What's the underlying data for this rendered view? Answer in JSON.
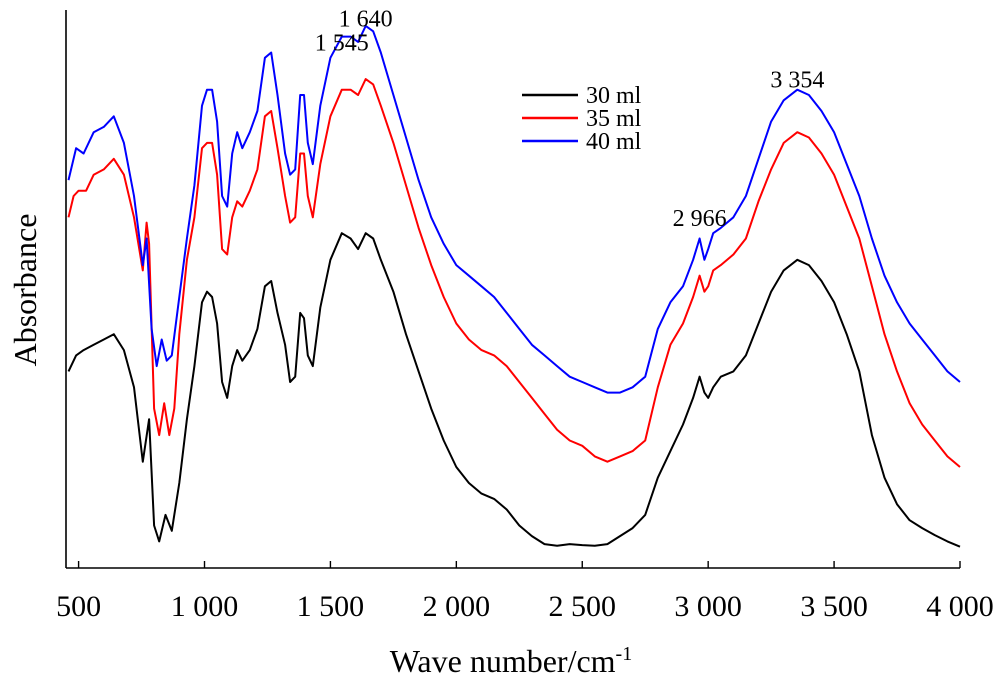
{
  "chart_data": {
    "type": "line",
    "xlabel": "Wave number/cm",
    "xlabel_sup": "-1",
    "ylabel": "Absorbance",
    "xlim": [
      450,
      4000
    ],
    "ylim": [
      0,
      1.05
    ],
    "x_ticks": [
      500,
      1000,
      1500,
      2000,
      2500,
      3000,
      3500,
      4000
    ],
    "x_tick_labels": [
      "500",
      "1 000",
      "1 500",
      "2 000",
      "2 500",
      "3 000",
      "3 500",
      "4 000"
    ],
    "y_ticks_shown": false,
    "legend_position": "top-center",
    "annotations": [
      {
        "text": "1 545",
        "x": 1545,
        "y": 0.955
      },
      {
        "text": "1 640",
        "x": 1640,
        "y": 1.0
      },
      {
        "text": "2 966",
        "x": 2966,
        "y": 0.625
      },
      {
        "text": "3 354",
        "x": 3354,
        "y": 0.885
      }
    ],
    "series": [
      {
        "name": "30 ml",
        "color": "#000000",
        "points": [
          [
            460,
            0.37
          ],
          [
            490,
            0.4
          ],
          [
            520,
            0.41
          ],
          [
            560,
            0.42
          ],
          [
            600,
            0.43
          ],
          [
            640,
            0.44
          ],
          [
            680,
            0.41
          ],
          [
            720,
            0.34
          ],
          [
            755,
            0.2
          ],
          [
            780,
            0.28
          ],
          [
            800,
            0.08
          ],
          [
            820,
            0.05
          ],
          [
            845,
            0.1
          ],
          [
            870,
            0.07
          ],
          [
            900,
            0.16
          ],
          [
            930,
            0.28
          ],
          [
            960,
            0.38
          ],
          [
            990,
            0.5
          ],
          [
            1010,
            0.52
          ],
          [
            1030,
            0.51
          ],
          [
            1050,
            0.46
          ],
          [
            1070,
            0.35
          ],
          [
            1090,
            0.32
          ],
          [
            1110,
            0.38
          ],
          [
            1130,
            0.41
          ],
          [
            1150,
            0.39
          ],
          [
            1180,
            0.41
          ],
          [
            1210,
            0.45
          ],
          [
            1240,
            0.53
          ],
          [
            1265,
            0.54
          ],
          [
            1290,
            0.48
          ],
          [
            1320,
            0.42
          ],
          [
            1340,
            0.35
          ],
          [
            1360,
            0.36
          ],
          [
            1380,
            0.48
          ],
          [
            1395,
            0.47
          ],
          [
            1410,
            0.4
          ],
          [
            1430,
            0.38
          ],
          [
            1460,
            0.49
          ],
          [
            1500,
            0.58
          ],
          [
            1545,
            0.63
          ],
          [
            1580,
            0.62
          ],
          [
            1610,
            0.6
          ],
          [
            1640,
            0.63
          ],
          [
            1670,
            0.62
          ],
          [
            1700,
            0.58
          ],
          [
            1750,
            0.52
          ],
          [
            1800,
            0.44
          ],
          [
            1850,
            0.37
          ],
          [
            1900,
            0.3
          ],
          [
            1950,
            0.24
          ],
          [
            2000,
            0.19
          ],
          [
            2050,
            0.16
          ],
          [
            2100,
            0.14
          ],
          [
            2150,
            0.13
          ],
          [
            2200,
            0.11
          ],
          [
            2250,
            0.08
          ],
          [
            2300,
            0.06
          ],
          [
            2350,
            0.045
          ],
          [
            2400,
            0.042
          ],
          [
            2450,
            0.045
          ],
          [
            2500,
            0.043
          ],
          [
            2550,
            0.042
          ],
          [
            2600,
            0.045
          ],
          [
            2650,
            0.06
          ],
          [
            2700,
            0.075
          ],
          [
            2750,
            0.1
          ],
          [
            2800,
            0.17
          ],
          [
            2850,
            0.22
          ],
          [
            2900,
            0.27
          ],
          [
            2940,
            0.32
          ],
          [
            2966,
            0.36
          ],
          [
            2985,
            0.33
          ],
          [
            3000,
            0.32
          ],
          [
            3020,
            0.34
          ],
          [
            3050,
            0.36
          ],
          [
            3100,
            0.37
          ],
          [
            3150,
            0.4
          ],
          [
            3200,
            0.46
          ],
          [
            3250,
            0.52
          ],
          [
            3300,
            0.56
          ],
          [
            3354,
            0.58
          ],
          [
            3400,
            0.57
          ],
          [
            3450,
            0.54
          ],
          [
            3500,
            0.5
          ],
          [
            3550,
            0.44
          ],
          [
            3600,
            0.37
          ],
          [
            3650,
            0.25
          ],
          [
            3700,
            0.17
          ],
          [
            3750,
            0.12
          ],
          [
            3800,
            0.09
          ],
          [
            3850,
            0.075
          ],
          [
            3900,
            0.062
          ],
          [
            3950,
            0.05
          ],
          [
            4000,
            0.04
          ]
        ]
      },
      {
        "name": "35 ml",
        "color": "#ff0000",
        "points": [
          [
            460,
            0.66
          ],
          [
            480,
            0.7
          ],
          [
            500,
            0.71
          ],
          [
            530,
            0.71
          ],
          [
            560,
            0.74
          ],
          [
            600,
            0.75
          ],
          [
            640,
            0.77
          ],
          [
            680,
            0.74
          ],
          [
            720,
            0.66
          ],
          [
            755,
            0.56
          ],
          [
            770,
            0.65
          ],
          [
            780,
            0.61
          ],
          [
            800,
            0.3
          ],
          [
            820,
            0.25
          ],
          [
            840,
            0.31
          ],
          [
            860,
            0.25
          ],
          [
            880,
            0.3
          ],
          [
            900,
            0.44
          ],
          [
            930,
            0.58
          ],
          [
            960,
            0.66
          ],
          [
            990,
            0.79
          ],
          [
            1010,
            0.8
          ],
          [
            1030,
            0.8
          ],
          [
            1050,
            0.74
          ],
          [
            1070,
            0.6
          ],
          [
            1090,
            0.59
          ],
          [
            1110,
            0.66
          ],
          [
            1130,
            0.69
          ],
          [
            1150,
            0.68
          ],
          [
            1180,
            0.71
          ],
          [
            1210,
            0.75
          ],
          [
            1240,
            0.85
          ],
          [
            1265,
            0.86
          ],
          [
            1290,
            0.79
          ],
          [
            1320,
            0.7
          ],
          [
            1340,
            0.65
          ],
          [
            1360,
            0.66
          ],
          [
            1380,
            0.78
          ],
          [
            1395,
            0.78
          ],
          [
            1410,
            0.7
          ],
          [
            1430,
            0.66
          ],
          [
            1460,
            0.76
          ],
          [
            1500,
            0.85
          ],
          [
            1545,
            0.9
          ],
          [
            1580,
            0.9
          ],
          [
            1610,
            0.89
          ],
          [
            1640,
            0.92
          ],
          [
            1670,
            0.91
          ],
          [
            1700,
            0.87
          ],
          [
            1750,
            0.8
          ],
          [
            1800,
            0.72
          ],
          [
            1850,
            0.64
          ],
          [
            1900,
            0.57
          ],
          [
            1950,
            0.51
          ],
          [
            2000,
            0.46
          ],
          [
            2050,
            0.43
          ],
          [
            2100,
            0.41
          ],
          [
            2150,
            0.4
          ],
          [
            2200,
            0.38
          ],
          [
            2250,
            0.35
          ],
          [
            2300,
            0.32
          ],
          [
            2350,
            0.29
          ],
          [
            2400,
            0.26
          ],
          [
            2450,
            0.24
          ],
          [
            2500,
            0.23
          ],
          [
            2550,
            0.21
          ],
          [
            2600,
            0.2
          ],
          [
            2650,
            0.21
          ],
          [
            2700,
            0.22
          ],
          [
            2750,
            0.24
          ],
          [
            2800,
            0.34
          ],
          [
            2850,
            0.42
          ],
          [
            2900,
            0.46
          ],
          [
            2940,
            0.51
          ],
          [
            2966,
            0.55
          ],
          [
            2985,
            0.52
          ],
          [
            3000,
            0.53
          ],
          [
            3020,
            0.56
          ],
          [
            3050,
            0.57
          ],
          [
            3100,
            0.59
          ],
          [
            3150,
            0.62
          ],
          [
            3200,
            0.69
          ],
          [
            3250,
            0.75
          ],
          [
            3300,
            0.8
          ],
          [
            3354,
            0.82
          ],
          [
            3400,
            0.81
          ],
          [
            3450,
            0.78
          ],
          [
            3500,
            0.74
          ],
          [
            3550,
            0.68
          ],
          [
            3600,
            0.62
          ],
          [
            3650,
            0.53
          ],
          [
            3700,
            0.44
          ],
          [
            3750,
            0.37
          ],
          [
            3800,
            0.31
          ],
          [
            3850,
            0.27
          ],
          [
            3900,
            0.24
          ],
          [
            3950,
            0.21
          ],
          [
            4000,
            0.19
          ]
        ]
      },
      {
        "name": "40 ml",
        "color": "#0000ff",
        "points": [
          [
            460,
            0.73
          ],
          [
            490,
            0.79
          ],
          [
            520,
            0.78
          ],
          [
            560,
            0.82
          ],
          [
            600,
            0.83
          ],
          [
            640,
            0.85
          ],
          [
            680,
            0.8
          ],
          [
            720,
            0.7
          ],
          [
            755,
            0.57
          ],
          [
            770,
            0.62
          ],
          [
            790,
            0.45
          ],
          [
            810,
            0.38
          ],
          [
            830,
            0.43
          ],
          [
            850,
            0.39
          ],
          [
            870,
            0.4
          ],
          [
            900,
            0.51
          ],
          [
            930,
            0.62
          ],
          [
            960,
            0.72
          ],
          [
            990,
            0.87
          ],
          [
            1010,
            0.9
          ],
          [
            1030,
            0.9
          ],
          [
            1050,
            0.84
          ],
          [
            1070,
            0.7
          ],
          [
            1090,
            0.68
          ],
          [
            1110,
            0.78
          ],
          [
            1130,
            0.82
          ],
          [
            1150,
            0.79
          ],
          [
            1180,
            0.82
          ],
          [
            1210,
            0.86
          ],
          [
            1240,
            0.96
          ],
          [
            1265,
            0.97
          ],
          [
            1290,
            0.89
          ],
          [
            1320,
            0.78
          ],
          [
            1340,
            0.74
          ],
          [
            1360,
            0.75
          ],
          [
            1380,
            0.89
          ],
          [
            1395,
            0.89
          ],
          [
            1410,
            0.8
          ],
          [
            1430,
            0.76
          ],
          [
            1460,
            0.87
          ],
          [
            1500,
            0.96
          ],
          [
            1545,
            1.0
          ],
          [
            1580,
            1.0
          ],
          [
            1610,
            0.99
          ],
          [
            1640,
            1.02
          ],
          [
            1670,
            1.01
          ],
          [
            1700,
            0.97
          ],
          [
            1750,
            0.89
          ],
          [
            1800,
            0.81
          ],
          [
            1850,
            0.73
          ],
          [
            1900,
            0.66
          ],
          [
            1950,
            0.61
          ],
          [
            2000,
            0.57
          ],
          [
            2050,
            0.55
          ],
          [
            2100,
            0.53
          ],
          [
            2150,
            0.51
          ],
          [
            2200,
            0.48
          ],
          [
            2250,
            0.45
          ],
          [
            2300,
            0.42
          ],
          [
            2350,
            0.4
          ],
          [
            2400,
            0.38
          ],
          [
            2450,
            0.36
          ],
          [
            2500,
            0.35
          ],
          [
            2550,
            0.34
          ],
          [
            2600,
            0.33
          ],
          [
            2650,
            0.33
          ],
          [
            2700,
            0.34
          ],
          [
            2750,
            0.36
          ],
          [
            2800,
            0.45
          ],
          [
            2850,
            0.5
          ],
          [
            2900,
            0.53
          ],
          [
            2940,
            0.58
          ],
          [
            2966,
            0.62
          ],
          [
            2985,
            0.58
          ],
          [
            3000,
            0.6
          ],
          [
            3020,
            0.63
          ],
          [
            3050,
            0.64
          ],
          [
            3100,
            0.66
          ],
          [
            3150,
            0.7
          ],
          [
            3200,
            0.77
          ],
          [
            3250,
            0.84
          ],
          [
            3300,
            0.88
          ],
          [
            3354,
            0.9
          ],
          [
            3400,
            0.89
          ],
          [
            3450,
            0.86
          ],
          [
            3500,
            0.82
          ],
          [
            3550,
            0.76
          ],
          [
            3600,
            0.7
          ],
          [
            3650,
            0.62
          ],
          [
            3700,
            0.55
          ],
          [
            3750,
            0.5
          ],
          [
            3800,
            0.46
          ],
          [
            3850,
            0.43
          ],
          [
            3900,
            0.4
          ],
          [
            3950,
            0.37
          ],
          [
            4000,
            0.35
          ]
        ]
      }
    ]
  }
}
